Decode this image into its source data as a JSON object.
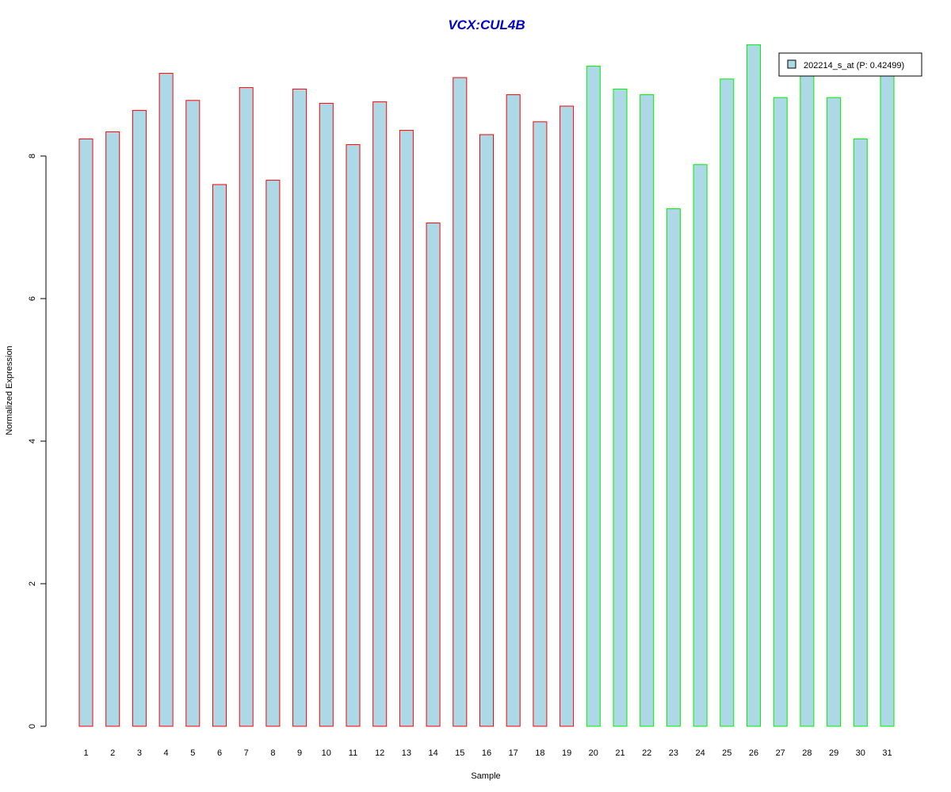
{
  "chart_data": {
    "type": "bar",
    "title": "VCX:CUL4B",
    "xlabel": "Sample",
    "ylabel": "Normalized Expression",
    "ylim": [
      0,
      9.6
    ],
    "yticks": [
      0,
      2,
      4,
      6,
      8
    ],
    "grid": false,
    "legend_position": "top-right",
    "legend": [
      {
        "label": "202214_s_at (P: 0.42499)",
        "fill": "#add8e6"
      }
    ],
    "colors": {
      "title": "#0000cc",
      "bar_fill": "#add8e6",
      "group1_border": "#ff0000",
      "group2_border": "#00ee00",
      "axis": "#000000"
    },
    "categories": [
      "1",
      "2",
      "3",
      "4",
      "5",
      "6",
      "7",
      "8",
      "9",
      "10",
      "11",
      "12",
      "13",
      "14",
      "15",
      "16",
      "17",
      "18",
      "19",
      "20",
      "21",
      "22",
      "23",
      "24",
      "25",
      "26",
      "27",
      "28",
      "29",
      "30",
      "31"
    ],
    "values": [
      8.24,
      8.34,
      8.64,
      9.16,
      8.78,
      7.6,
      8.96,
      7.66,
      8.94,
      8.74,
      8.16,
      8.76,
      8.36,
      7.06,
      9.1,
      8.3,
      8.86,
      8.48,
      8.7,
      9.26,
      8.94,
      8.86,
      7.26,
      7.88,
      9.08,
      9.56,
      8.82,
      9.16,
      8.82,
      8.24,
      9.16
    ],
    "groups": [
      1,
      1,
      1,
      1,
      1,
      1,
      1,
      1,
      1,
      1,
      1,
      1,
      1,
      1,
      1,
      1,
      1,
      1,
      1,
      2,
      2,
      2,
      2,
      2,
      2,
      2,
      2,
      2,
      2,
      2,
      2
    ]
  }
}
